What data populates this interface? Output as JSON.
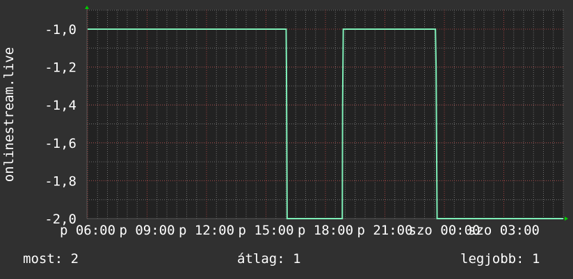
{
  "chart_data": {
    "type": "line",
    "ylabel": "onlinestream.live",
    "ylim": [
      -2.0,
      -0.92
    ],
    "xlim": [
      "p 06:00",
      "szo 06:00"
    ],
    "y_ticks": [
      "-1,0",
      "-1,2",
      "-1,4",
      "-1,6",
      "-1,8",
      "-2,0"
    ],
    "y_tick_values": [
      -1.0,
      -1.2,
      -1.4,
      -1.6,
      -1.8,
      -2.0
    ],
    "x_ticks": [
      "p 06:00",
      "p 09:00",
      "p 12:00",
      "p 15:00",
      "p 18:00",
      "p 21:00",
      "szo 00:00",
      "szo 03:00"
    ],
    "grid": true,
    "background": "#222222",
    "line_color": "#7ff0b8",
    "major_grid_color": "#a04040",
    "minor_grid_color": "#707070",
    "axis_arrow_color": "#00cc00",
    "series": [
      {
        "points": [
          [
            "p 06:00",
            -1.0
          ],
          [
            "p 16:01",
            -1.0
          ],
          [
            "p 16:02",
            -1.2
          ],
          [
            "p 16:04",
            -2.0
          ],
          [
            "p 18:51",
            -2.0
          ],
          [
            "p 18:52",
            -1.4
          ],
          [
            "p 18:54",
            -1.0
          ],
          [
            "p 23:33",
            -1.0
          ],
          [
            "p 23:35",
            -1.2
          ],
          [
            "p 23:38",
            -2.0
          ],
          [
            "szo 06:00",
            -2.0
          ]
        ]
      }
    ]
  },
  "legend": {
    "current": "most: 2",
    "average": "átlag: 1",
    "best": "legjobb: 1"
  }
}
